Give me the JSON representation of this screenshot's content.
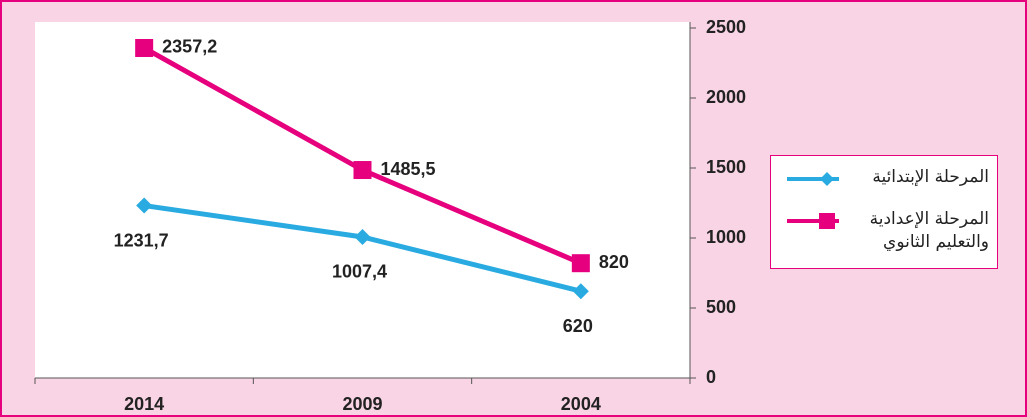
{
  "chart_data": {
    "type": "line",
    "categories": [
      "2014",
      "2009",
      "2004"
    ],
    "series": [
      {
        "name": "المرحلة الإبتدائية",
        "color": "#29abe2",
        "marker": "diamond",
        "values": [
          1231.7,
          1007.4,
          620
        ],
        "value_labels": [
          "1231,7",
          "1007,4",
          "620"
        ]
      },
      {
        "name": "المرحلة الإعدادية والتعليم الثانوي",
        "color": "#e6007e",
        "marker": "square",
        "values": [
          2357.2,
          1485.5,
          820
        ],
        "value_labels": [
          "2357,2",
          "1485,5",
          "820"
        ]
      }
    ],
    "ylim": [
      0,
      2500
    ],
    "yticks": [
      0,
      500,
      1000,
      1500,
      2000,
      2500
    ],
    "y_axis_side": "right",
    "grid": false,
    "legend": "right"
  }
}
